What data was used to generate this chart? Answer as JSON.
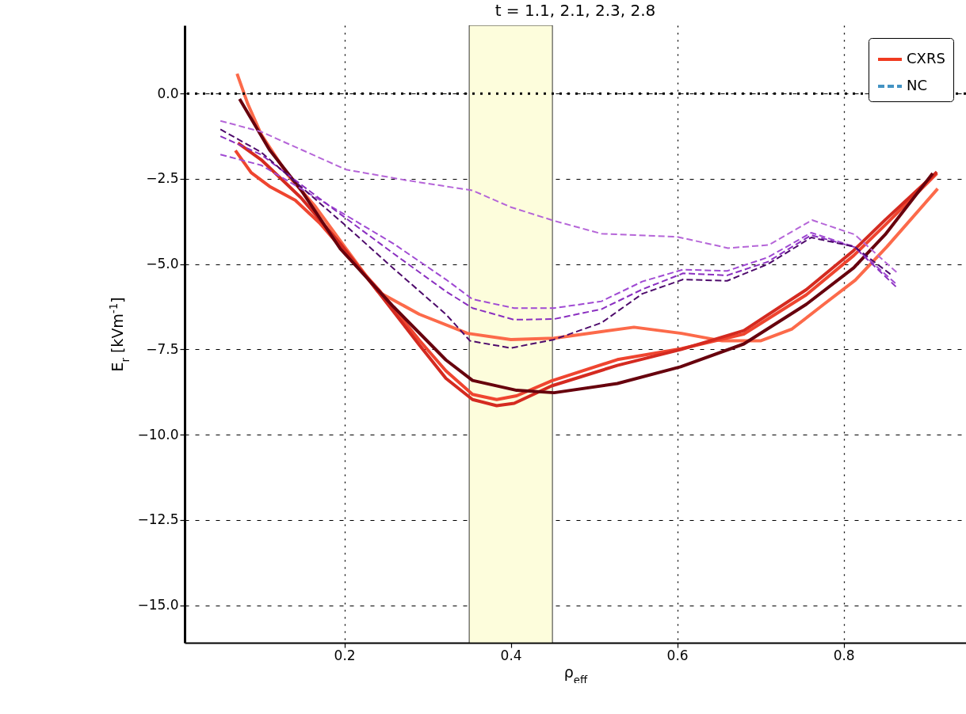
{
  "chart_data": {
    "type": "line",
    "title": "t = 1.1, 2.1, 2.3, 2.8",
    "xlabel": "ρ$_{eff}$",
    "ylabel": "E$_{r}$ [kVm$^{-1}$]",
    "xlim": [
      0.008,
      0.947
    ],
    "ylim": [
      -16.1,
      2.0
    ],
    "xticks": [
      0.2,
      0.4,
      0.6,
      0.8
    ],
    "yticks": [
      {
        "value": -15,
        "label": "−15.0"
      },
      {
        "value": -12.5,
        "label": "−12.5"
      },
      {
        "value": -10,
        "label": "−10.0"
      },
      {
        "value": -7.5,
        "label": "−7.5"
      },
      {
        "value": -5,
        "label": "−5.0"
      },
      {
        "value": -2.5,
        "label": "−2.5"
      },
      {
        "value": 0,
        "label": "0.0"
      }
    ],
    "grid": true,
    "legend": "top right",
    "ref_lines": [
      {
        "axis": "y",
        "value": 0,
        "color": "#000000",
        "line_style": "dotted"
      }
    ],
    "bands": [
      {
        "axis": "x",
        "from": 0.35,
        "to": 0.45,
        "color": "#fdfddc"
      }
    ],
    "series": [
      {
        "color": "#fc6a4a",
        "line_style": "solid",
        "x": [
          0.071,
          0.084,
          0.1,
          0.132,
          0.164,
          0.202,
          0.24,
          0.29,
          0.348,
          0.4,
          0.452,
          0.548,
          0.605,
          0.654,
          0.7,
          0.738,
          0.776,
          0.814,
          0.852,
          0.913
        ],
        "values": [
          0.58,
          -0.31,
          -1.2,
          -2.39,
          -3.28,
          -4.55,
          -5.8,
          -6.47,
          -7.03,
          -7.21,
          -7.17,
          -6.85,
          -7.03,
          -7.25,
          -7.25,
          -6.9,
          -6.18,
          -5.47,
          -4.49,
          -2.79
        ]
      },
      {
        "color": "#ef4530",
        "line_style": "solid",
        "x": [
          0.069,
          0.088,
          0.11,
          0.141,
          0.17,
          0.202,
          0.243,
          0.29,
          0.322,
          0.354,
          0.383,
          0.407,
          0.449,
          0.528,
          0.605,
          0.68,
          0.755,
          0.812,
          0.85,
          0.912
        ],
        "values": [
          -1.67,
          -2.32,
          -2.72,
          -3.13,
          -3.79,
          -4.69,
          -5.8,
          -7.23,
          -8.13,
          -8.82,
          -8.97,
          -8.86,
          -8.42,
          -7.8,
          -7.48,
          -7.05,
          -5.9,
          -4.75,
          -3.85,
          -2.34
        ]
      },
      {
        "color": "#d42a20",
        "line_style": "solid",
        "x": [
          0.072,
          0.1,
          0.148,
          0.195,
          0.243,
          0.29,
          0.322,
          0.354,
          0.383,
          0.404,
          0.449,
          0.528,
          0.605,
          0.68,
          0.755,
          0.812,
          0.85,
          0.912
        ],
        "values": [
          -1.45,
          -1.94,
          -3.06,
          -4.4,
          -5.89,
          -7.37,
          -8.35,
          -8.97,
          -9.15,
          -9.08,
          -8.57,
          -7.97,
          -7.5,
          -6.95,
          -5.75,
          -4.6,
          -3.7,
          -2.3
        ]
      },
      {
        "color": "#67000d",
        "line_style": "solid",
        "x": [
          0.074,
          0.11,
          0.148,
          0.195,
          0.259,
          0.322,
          0.354,
          0.407,
          0.452,
          0.528,
          0.604,
          0.68,
          0.755,
          0.812,
          0.85,
          0.907
        ],
        "values": [
          -0.16,
          -1.65,
          -2.83,
          -4.55,
          -6.25,
          -7.81,
          -8.41,
          -8.7,
          -8.77,
          -8.5,
          -8.01,
          -7.34,
          -6.18,
          -5.11,
          -4.13,
          -2.34
        ]
      },
      {
        "color": "#b565d8",
        "line_style": "dashed",
        "x": [
          0.051,
          0.1,
          0.202,
          0.274,
          0.354,
          0.4,
          0.452,
          0.509,
          0.6,
          0.661,
          0.71,
          0.762,
          0.813,
          0.866
        ],
        "values": [
          -0.8,
          -1.12,
          -2.23,
          -2.54,
          -2.84,
          -3.33,
          -3.73,
          -4.11,
          -4.2,
          -4.53,
          -4.44,
          -3.71,
          -4.13,
          -5.29
        ]
      },
      {
        "color": "#a04ad3",
        "line_style": "dashed",
        "x": [
          0.051,
          0.1,
          0.202,
          0.259,
          0.322,
          0.354,
          0.404,
          0.452,
          0.509,
          0.558,
          0.607,
          0.66,
          0.709,
          0.761,
          0.813,
          0.864
        ],
        "values": [
          -1.79,
          -2.1,
          -3.57,
          -4.4,
          -5.45,
          -6.03,
          -6.29,
          -6.29,
          -6.09,
          -5.51,
          -5.16,
          -5.2,
          -4.8,
          -4.08,
          -4.49,
          -5.6
        ]
      },
      {
        "color": "#8a2fc0",
        "line_style": "dashed",
        "x": [
          0.051,
          0.1,
          0.202,
          0.259,
          0.322,
          0.354,
          0.404,
          0.452,
          0.509,
          0.558,
          0.607,
          0.66,
          0.709,
          0.761,
          0.813,
          0.864
        ],
        "values": [
          -1.25,
          -1.79,
          -3.66,
          -4.69,
          -5.8,
          -6.29,
          -6.63,
          -6.61,
          -6.32,
          -5.74,
          -5.27,
          -5.33,
          -4.93,
          -4.15,
          -4.5,
          -5.69
        ]
      },
      {
        "color": "#4d0a6b",
        "line_style": "dashed",
        "x": [
          0.051,
          0.1,
          0.202,
          0.259,
          0.322,
          0.351,
          0.4,
          0.452,
          0.509,
          0.558,
          0.607,
          0.66,
          0.709,
          0.761,
          0.813,
          0.858
        ],
        "values": [
          -1.05,
          -1.72,
          -3.88,
          -5.13,
          -6.47,
          -7.25,
          -7.46,
          -7.21,
          -6.72,
          -5.87,
          -5.45,
          -5.49,
          -5.0,
          -4.22,
          -4.49,
          -5.33
        ]
      },
      {
        "name": "CXRS",
        "color": "#f03b20",
        "line_style": "solid",
        "values": [
          null
        ]
      },
      {
        "name": "NC",
        "color": "#4393c3",
        "line_style": "dashed",
        "values": [
          null
        ]
      }
    ]
  }
}
